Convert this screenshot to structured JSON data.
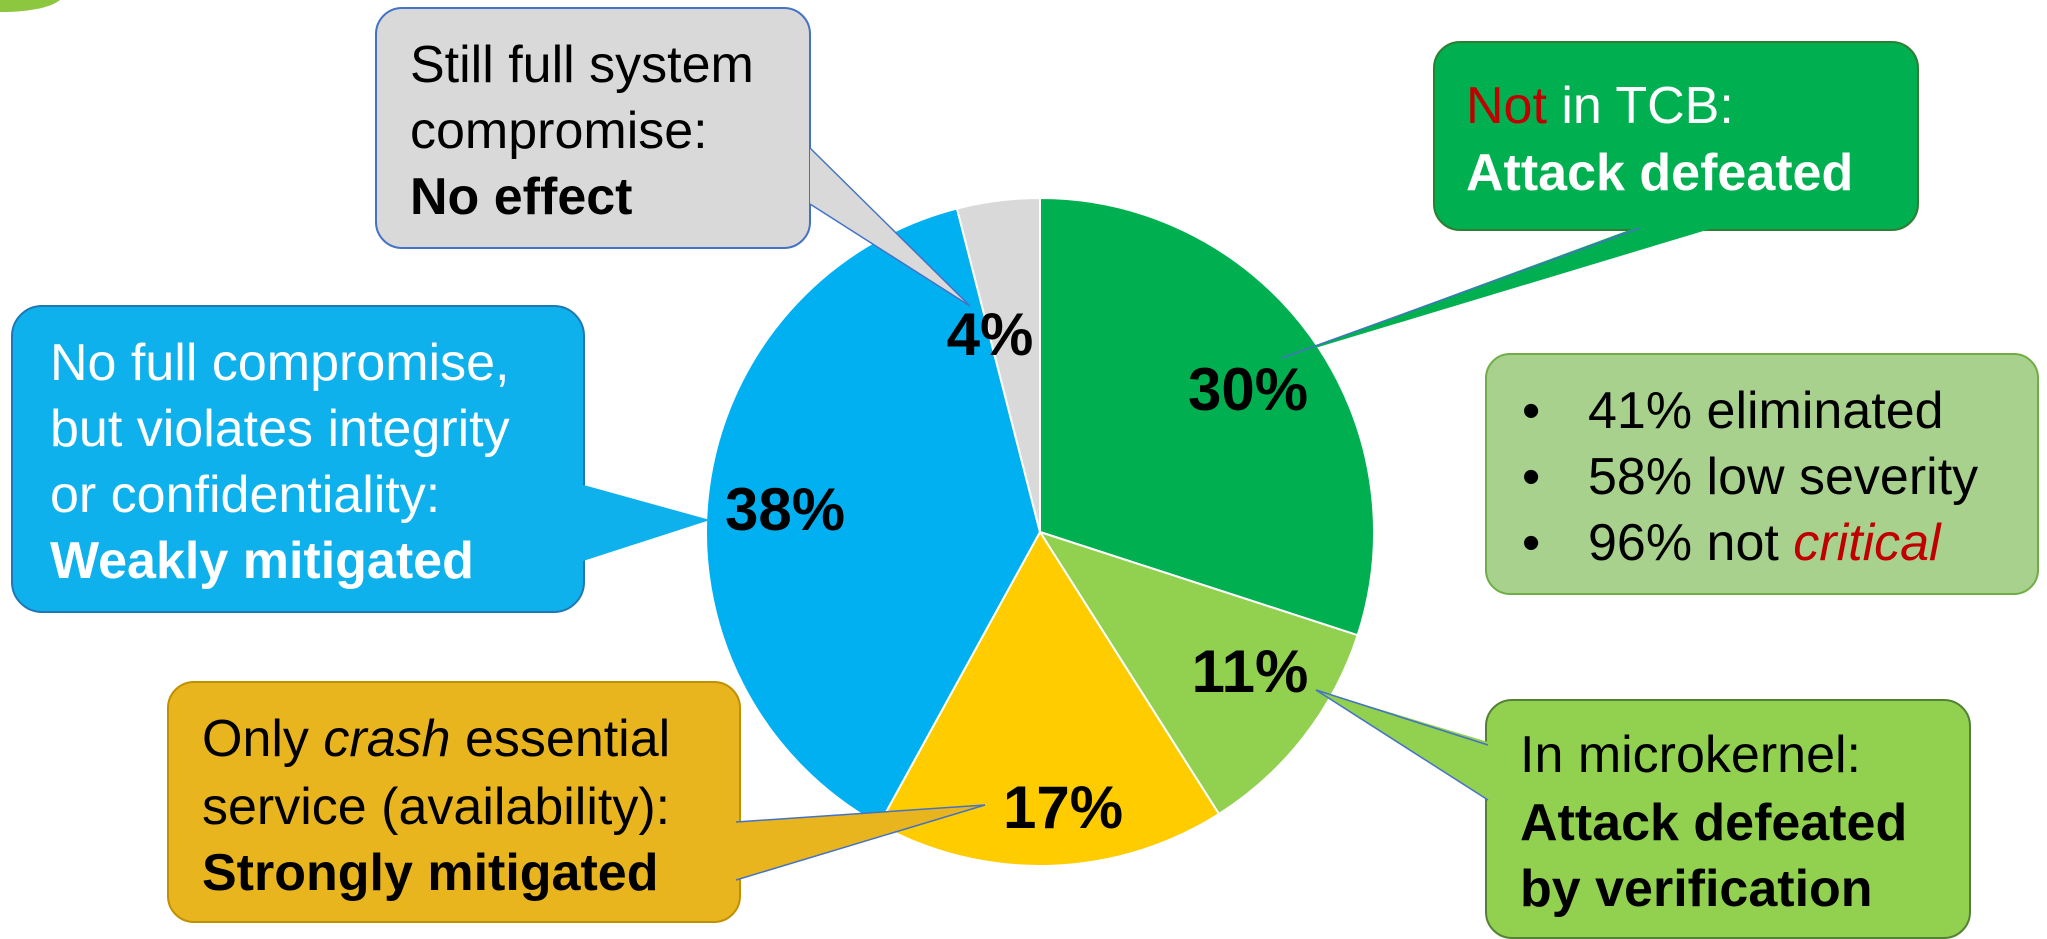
{
  "colors": {
    "not_in_tcb": "#00b050",
    "in_microkernel": "#92d050",
    "strongly_mitigated": "#ffcc00",
    "weakly_mitigated": "#00b0f0",
    "no_effect": "#d9d9d9",
    "summary_box": "#a9d18e",
    "red_accent": "#c00000"
  },
  "chart_data": {
    "type": "pie",
    "slices": [
      {
        "value": 30,
        "label": "30%"
      },
      {
        "value": 11,
        "label": "11%"
      },
      {
        "value": 17,
        "label": "17%"
      },
      {
        "value": 38,
        "label": "38%"
      },
      {
        "value": 4,
        "label": "4%"
      }
    ]
  },
  "callouts": {
    "not_in_tcb": {
      "line1_red": "Not",
      "line1_rest": " in TCB:",
      "line2": "Attack defeated"
    },
    "microkernel": {
      "line1": "In microkernel:",
      "line2": "Attack defeated",
      "line3": "by verification"
    },
    "strongly": {
      "line1_pre": "Only ",
      "line1_italic": "crash",
      "line1_post": " essential",
      "line2": "service (availability):",
      "line3": "Strongly mitigated"
    },
    "weakly": {
      "line1": "No full compromise,",
      "line2": "but violates integrity",
      "line3": "or confidentiality:",
      "line4": "Weakly mitigated"
    },
    "no_effect": {
      "line1": "Still full system",
      "line2": "compromise:",
      "line3": "No effect"
    }
  },
  "summary": {
    "bullet": "•",
    "item1": "41% eliminated",
    "item2": "58% low severity",
    "item3_pre": "96% not ",
    "item3_italic": "critical"
  }
}
